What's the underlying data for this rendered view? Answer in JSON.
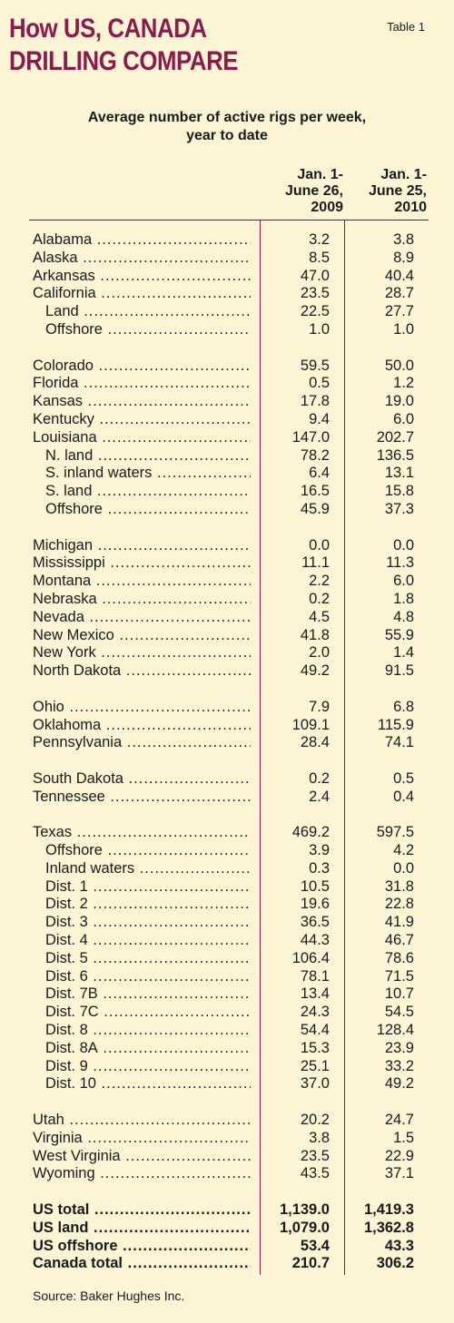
{
  "header": {
    "title_line1": "How US, CANADA",
    "title_line2": "DRILLING COMPARE",
    "table_label": "Table 1"
  },
  "caption": {
    "line1": "Average number of active rigs per week,",
    "line2": "year to date"
  },
  "columns": {
    "col1": [
      "Jan. 1-",
      "June 26,",
      "2009"
    ],
    "col2": [
      "Jan. 1-",
      "June 25,",
      "2010"
    ]
  },
  "rows": [
    {
      "label": "Alabama",
      "v2009": "3.2",
      "v2010": "3.8"
    },
    {
      "label": "Alaska",
      "v2009": "8.5",
      "v2010": "8.9"
    },
    {
      "label": "Arkansas",
      "v2009": "47.0",
      "v2010": "40.4"
    },
    {
      "label": "California",
      "v2009": "23.5",
      "v2010": "28.7"
    },
    {
      "label": "Land",
      "v2009": "22.5",
      "v2010": "27.7",
      "sub": true
    },
    {
      "label": "Offshore",
      "v2009": "1.0",
      "v2010": "1.0",
      "sub": true
    },
    {
      "gap": true
    },
    {
      "label": "Colorado",
      "v2009": "59.5",
      "v2010": "50.0"
    },
    {
      "label": "Florida",
      "v2009": "0.5",
      "v2010": "1.2"
    },
    {
      "label": "Kansas",
      "v2009": "17.8",
      "v2010": "19.0"
    },
    {
      "label": "Kentucky",
      "v2009": "9.4",
      "v2010": "6.0"
    },
    {
      "label": "Louisiana",
      "v2009": "147.0",
      "v2010": "202.7"
    },
    {
      "label": "N. land",
      "v2009": "78.2",
      "v2010": "136.5",
      "sub": true
    },
    {
      "label": "S. inland waters",
      "v2009": "6.4",
      "v2010": "13.1",
      "sub": true
    },
    {
      "label": "S. land",
      "v2009": "16.5",
      "v2010": "15.8",
      "sub": true
    },
    {
      "label": "Offshore",
      "v2009": "45.9",
      "v2010": "37.3",
      "sub": true
    },
    {
      "gap": true
    },
    {
      "label": "Michigan",
      "v2009": "0.0",
      "v2010": "0.0"
    },
    {
      "label": "Mississippi",
      "v2009": "11.1",
      "v2010": "11.3"
    },
    {
      "label": "Montana",
      "v2009": "2.2",
      "v2010": "6.0"
    },
    {
      "label": "Nebraska",
      "v2009": "0.2",
      "v2010": "1.8"
    },
    {
      "label": "Nevada",
      "v2009": "4.5",
      "v2010": "4.8"
    },
    {
      "label": "New Mexico",
      "v2009": "41.8",
      "v2010": "55.9"
    },
    {
      "label": "New York",
      "v2009": "2.0",
      "v2010": "1.4"
    },
    {
      "label": "North Dakota",
      "v2009": "49.2",
      "v2010": "91.5"
    },
    {
      "gap": true
    },
    {
      "label": "Ohio",
      "v2009": "7.9",
      "v2010": "6.8"
    },
    {
      "label": "Oklahoma",
      "v2009": "109.1",
      "v2010": "115.9"
    },
    {
      "label": "Pennsylvania",
      "v2009": "28.4",
      "v2010": "74.1"
    },
    {
      "gap": true
    },
    {
      "label": "South Dakota",
      "v2009": "0.2",
      "v2010": "0.5"
    },
    {
      "label": "Tennessee",
      "v2009": "2.4",
      "v2010": "0.4"
    },
    {
      "gap": true
    },
    {
      "label": "Texas",
      "v2009": "469.2",
      "v2010": "597.5"
    },
    {
      "label": "Offshore",
      "v2009": "3.9",
      "v2010": "4.2",
      "sub": true
    },
    {
      "label": "Inland waters",
      "v2009": "0.3",
      "v2010": "0.0",
      "sub": true
    },
    {
      "label": "Dist. 1",
      "v2009": "10.5",
      "v2010": "31.8",
      "sub": true
    },
    {
      "label": "Dist. 2",
      "v2009": "19.6",
      "v2010": "22.8",
      "sub": true
    },
    {
      "label": "Dist. 3",
      "v2009": "36.5",
      "v2010": "41.9",
      "sub": true
    },
    {
      "label": "Dist. 4",
      "v2009": "44.3",
      "v2010": "46.7",
      "sub": true
    },
    {
      "label": "Dist. 5",
      "v2009": "106.4",
      "v2010": "78.6",
      "sub": true
    },
    {
      "label": "Dist. 6",
      "v2009": "78.1",
      "v2010": "71.5",
      "sub": true
    },
    {
      "label": "Dist. 7B",
      "v2009": "13.4",
      "v2010": "10.7",
      "sub": true
    },
    {
      "label": "Dist. 7C",
      "v2009": "24.3",
      "v2010": "54.5",
      "sub": true
    },
    {
      "label": "Dist. 8",
      "v2009": "54.4",
      "v2010": "128.4",
      "sub": true
    },
    {
      "label": "Dist. 8A",
      "v2009": "15.3",
      "v2010": "23.9",
      "sub": true
    },
    {
      "label": "Dist. 9",
      "v2009": "25.1",
      "v2010": "33.2",
      "sub": true
    },
    {
      "label": "Dist. 10",
      "v2009": "37.0",
      "v2010": "49.2",
      "sub": true
    },
    {
      "gap": true
    },
    {
      "label": "Utah",
      "v2009": "20.2",
      "v2010": "24.7"
    },
    {
      "label": "Virginia",
      "v2009": "3.8",
      "v2010": "1.5"
    },
    {
      "label": "West Virginia",
      "v2009": "23.5",
      "v2010": "22.9"
    },
    {
      "label": "Wyoming",
      "v2009": "43.5",
      "v2010": "37.1"
    },
    {
      "gap": true
    },
    {
      "label": "US total",
      "v2009": "1,139.0",
      "v2010": "1,419.3",
      "total": true
    },
    {
      "label": "US land",
      "v2009": "1,079.0",
      "v2010": "1,362.8",
      "total": true
    },
    {
      "label": "US offshore",
      "v2009": "53.4",
      "v2010": "43.3",
      "total": true
    },
    {
      "label": "Canada total",
      "v2009": "210.7",
      "v2010": "306.2",
      "total": true
    }
  ],
  "source": "Source: Baker Hughes Inc.",
  "colors": {
    "background": "#fbf5d6",
    "title": "#8c1a4b",
    "rule": "#8c1a4b"
  }
}
